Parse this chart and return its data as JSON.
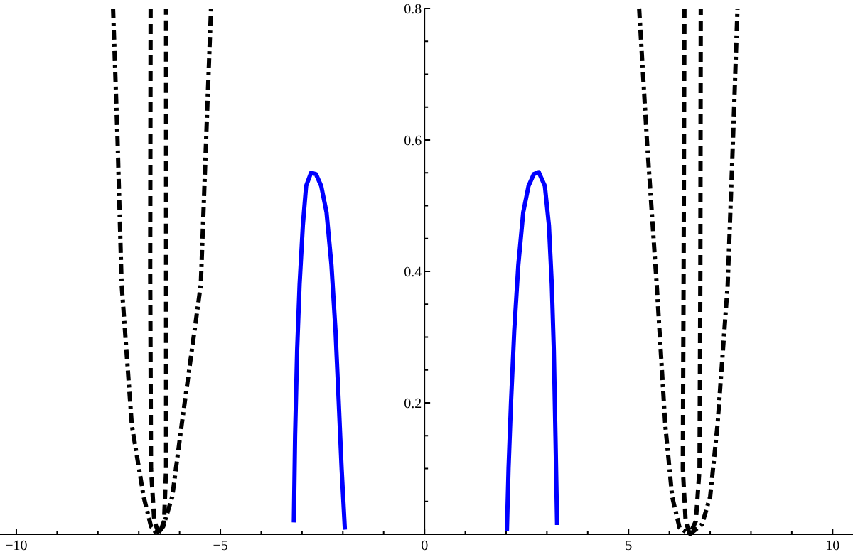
{
  "chart_data": {
    "type": "line",
    "xlim": [
      -10.4,
      10.5
    ],
    "ylim": [
      0,
      0.8
    ],
    "xticks": [
      {
        "value": -10,
        "label": "−10"
      },
      {
        "value": -9,
        "label": null
      },
      {
        "value": -8,
        "label": null
      },
      {
        "value": -7,
        "label": null
      },
      {
        "value": -6,
        "label": null
      },
      {
        "value": -5,
        "label": "−5"
      },
      {
        "value": -4,
        "label": null
      },
      {
        "value": -3,
        "label": null
      },
      {
        "value": -2,
        "label": null
      },
      {
        "value": -1,
        "label": null
      },
      0,
      {
        "value": 1,
        "label": null
      },
      {
        "value": 2,
        "label": null
      },
      {
        "value": 3,
        "label": null
      },
      {
        "value": 4,
        "label": null
      },
      5,
      {
        "value": 6,
        "label": null
      },
      {
        "value": 7,
        "label": null
      },
      {
        "value": 8,
        "label": null
      },
      {
        "value": 9,
        "label": null
      },
      10
    ],
    "yticks": [
      {
        "value": 0.05,
        "label": null
      },
      {
        "value": 0.1,
        "label": null
      },
      {
        "value": 0.15,
        "label": null
      },
      0.2,
      {
        "value": 0.25,
        "label": null
      },
      {
        "value": 0.3,
        "label": null
      },
      {
        "value": 0.35,
        "label": null
      },
      0.4,
      {
        "value": 0.45,
        "label": null
      },
      {
        "value": 0.5,
        "label": null
      },
      {
        "value": 0.55,
        "label": null
      },
      0.6,
      {
        "value": 0.65,
        "label": null
      },
      {
        "value": 0.7,
        "label": null
      },
      {
        "value": 0.75,
        "label": null
      },
      0.8
    ],
    "grid": false,
    "marker": "none",
    "series": [
      {
        "color": "#0000ff",
        "line_style": "solid",
        "x": [
          -3.2,
          -3.17,
          -3.12,
          -3.06,
          -2.98,
          -2.9,
          -2.78,
          -2.66,
          -2.53,
          -2.4,
          -2.28,
          -2.18,
          -2.1,
          -2.03,
          -1.95
        ],
        "values": [
          0.018,
          0.15,
          0.28,
          0.38,
          0.47,
          0.53,
          0.55,
          0.548,
          0.53,
          0.49,
          0.41,
          0.31,
          0.2,
          0.1,
          0.007
        ]
      },
      {
        "color": "#0000ff",
        "line_style": "solid",
        "x": [
          2.02,
          2.06,
          2.12,
          2.2,
          2.3,
          2.42,
          2.55,
          2.68,
          2.8,
          2.95,
          3.05,
          3.12,
          3.17,
          3.21,
          3.25
        ],
        "values": [
          0.005,
          0.1,
          0.2,
          0.31,
          0.41,
          0.49,
          0.53,
          0.548,
          0.551,
          0.53,
          0.47,
          0.38,
          0.28,
          0.15,
          0.014
        ]
      },
      {
        "color": "#000000",
        "line_style": "dashdot",
        "x": [
          -7.63,
          -7.52,
          -7.42,
          -7.17,
          -6.88,
          -6.7,
          -6.55,
          -6.4,
          -6.18,
          -5.95,
          -5.48,
          -5.35,
          -5.23
        ],
        "values": [
          0.8,
          0.6,
          0.38,
          0.166,
          0.057,
          0.012,
          0,
          0.012,
          0.057,
          0.166,
          0.38,
          0.6,
          0.8
        ]
      },
      {
        "color": "#000000",
        "line_style": "dashed",
        "x": [
          -6.71,
          -6.72,
          -6.7,
          -6.62,
          -6.5,
          -6.38,
          -6.33,
          -6.33,
          -6.33
        ],
        "values": [
          0.8,
          0.4,
          0.1,
          0.02,
          0,
          0.02,
          0.1,
          0.4,
          0.8
        ]
      },
      {
        "color": "#000000",
        "line_style": "dashed",
        "x": [
          6.37,
          6.35,
          6.33,
          6.4,
          6.5,
          6.65,
          6.74,
          6.76,
          6.77
        ],
        "values": [
          0.8,
          0.4,
          0.1,
          0.02,
          0,
          0.02,
          0.1,
          0.4,
          0.8
        ]
      },
      {
        "color": "#000000",
        "line_style": "dashdot",
        "x": [
          5.26,
          5.45,
          5.69,
          5.9,
          6.07,
          6.25,
          6.5,
          6.8,
          7.0,
          7.18,
          7.43,
          7.56,
          7.67
        ],
        "values": [
          0.8,
          0.6,
          0.38,
          0.166,
          0.057,
          0.01,
          0,
          0.015,
          0.057,
          0.166,
          0.38,
          0.6,
          0.8
        ]
      }
    ]
  }
}
